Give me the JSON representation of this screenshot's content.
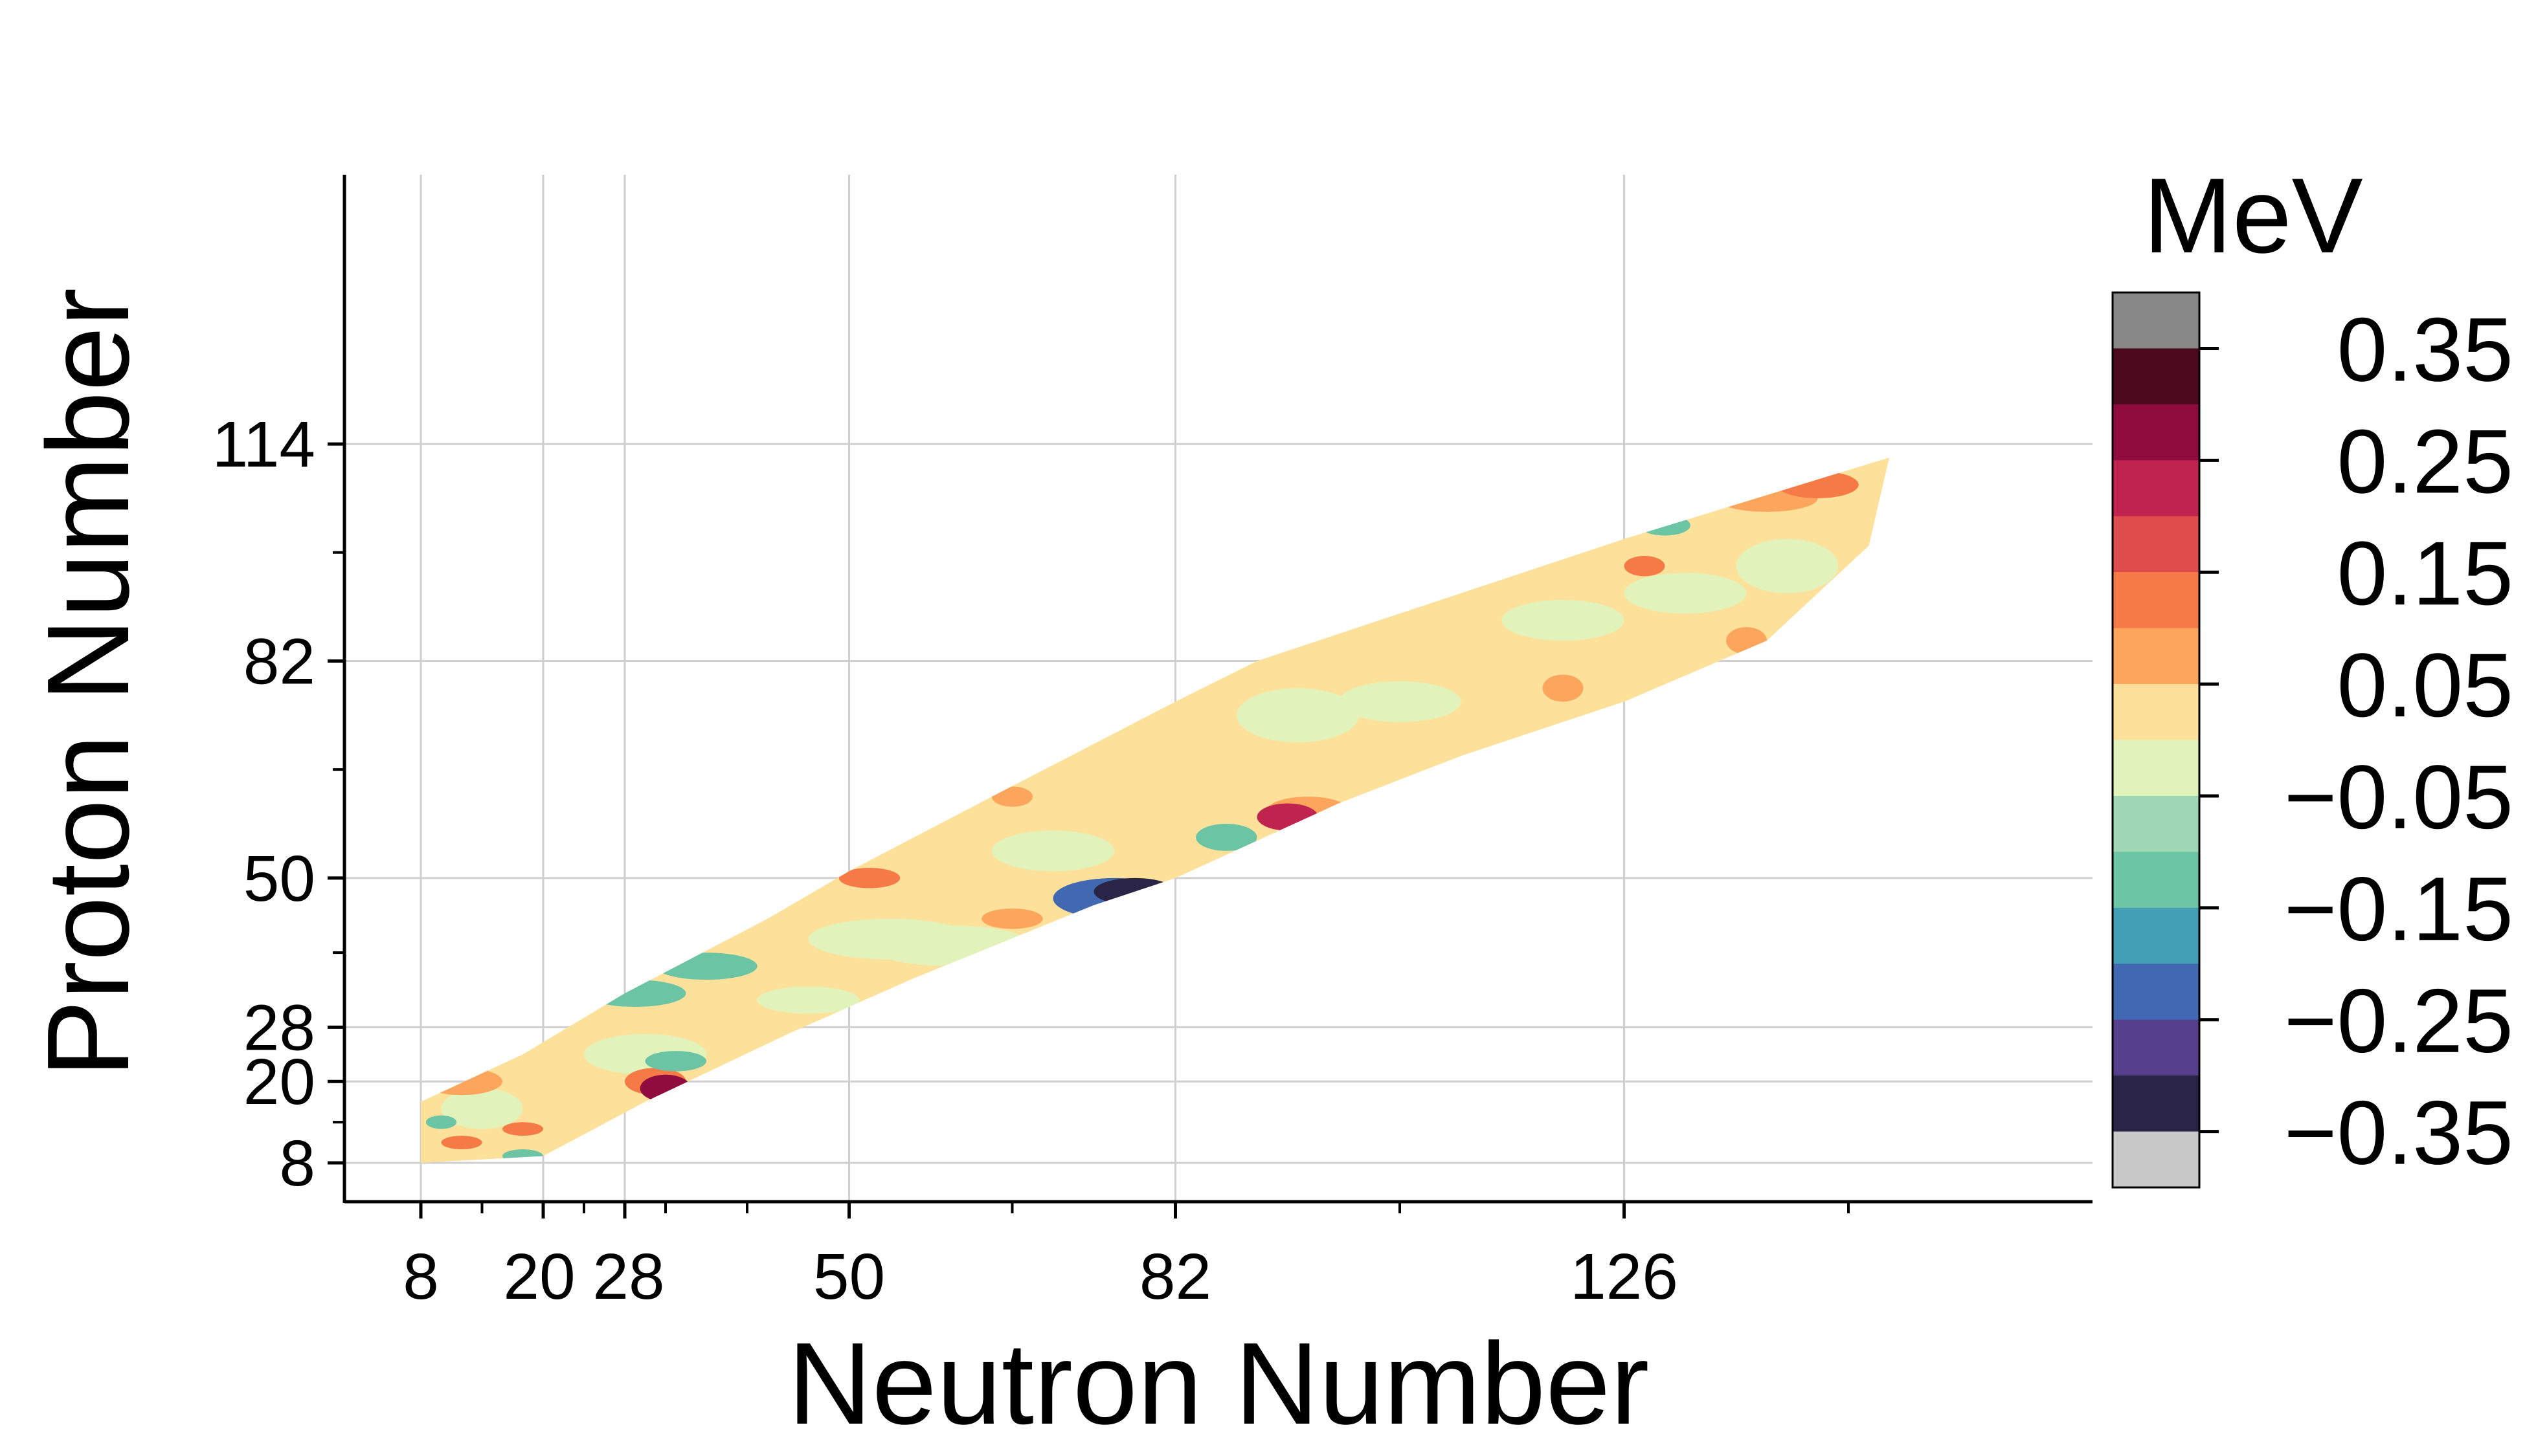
{
  "chart_data": {
    "type": "heatmap",
    "title": "",
    "xlabel": "Neutron Number",
    "ylabel": "Proton Number",
    "xlim": [
      0,
      196
    ],
    "ylim": [
      0,
      120
    ],
    "xticks_labeled": [
      8,
      20,
      28,
      50,
      82,
      126
    ],
    "xticks_minor": [
      14,
      24,
      32,
      40,
      66,
      104,
      148
    ],
    "yticks_labeled": [
      8,
      20,
      28,
      50,
      82,
      114
    ],
    "yticks_minor": [
      14,
      39,
      66,
      98
    ],
    "grid": true,
    "colorbar": {
      "title": "MeV",
      "tick_labels": [
        "0.35",
        "0.25",
        "0.15",
        "0.05",
        "−0.05",
        "−0.15",
        "−0.25",
        "−0.35"
      ],
      "tick_values": [
        0.35,
        0.25,
        0.15,
        0.05,
        -0.05,
        -0.15,
        -0.25,
        -0.35
      ],
      "levels": [
        {
          "range": [
            0.4,
            0.5
          ],
          "color": "#888888"
        },
        {
          "range": [
            0.3,
            0.4
          ],
          "color": "#4d0a1e"
        },
        {
          "range": [
            0.2,
            0.3
          ],
          "color": "#900c3f"
        },
        {
          "range": [
            0.2,
            0.25
          ],
          "color": "#c0234d"
        },
        {
          "range": [
            0.15,
            0.2
          ],
          "color": "#de4c4b"
        },
        {
          "range": [
            0.1,
            0.15
          ],
          "color": "#f57a46"
        },
        {
          "range": [
            0.05,
            0.1
          ],
          "color": "#fca55d"
        },
        {
          "range": [
            0.0,
            0.05
          ],
          "color": "#fde19b"
        },
        {
          "range": [
            -0.05,
            0.0
          ],
          "color": "#e1f3bb"
        },
        {
          "range": [
            -0.1,
            -0.05
          ],
          "color": "#9fd7b5"
        },
        {
          "range": [
            -0.15,
            -0.1
          ],
          "color": "#6bc4a4"
        },
        {
          "range": [
            -0.2,
            -0.15
          ],
          "color": "#429fb5"
        },
        {
          "range": [
            -0.25,
            -0.2
          ],
          "color": "#4069b1"
        },
        {
          "range": [
            -0.3,
            -0.25
          ],
          "color": "#563f8b"
        },
        {
          "range": [
            -0.4,
            -0.3
          ],
          "color": "#2a2546"
        },
        {
          "range": [
            -0.5,
            -0.4
          ],
          "color": "#c8c8c8"
        }
      ]
    },
    "domain_outline": [
      [
        8,
        17
      ],
      [
        18,
        24
      ],
      [
        28,
        33
      ],
      [
        42,
        44
      ],
      [
        50,
        51
      ],
      [
        64,
        62
      ],
      [
        82,
        76
      ],
      [
        90,
        82
      ],
      [
        104,
        89
      ],
      [
        126,
        100
      ],
      [
        152,
        112
      ],
      [
        150,
        99
      ],
      [
        140,
        85
      ],
      [
        126,
        76
      ],
      [
        110,
        68
      ],
      [
        98,
        61
      ],
      [
        82,
        50
      ],
      [
        74,
        46
      ],
      [
        56,
        35
      ],
      [
        44,
        27
      ],
      [
        30,
        17
      ],
      [
        20,
        9
      ],
      [
        8,
        8
      ]
    ],
    "background_level": 0.02,
    "patches": [
      {
        "n": 54,
        "z": 41,
        "value": -0.04,
        "rx": 8,
        "rz": 3
      },
      {
        "n": 70,
        "z": 54,
        "value": -0.04,
        "rx": 6,
        "rz": 3
      },
      {
        "n": 60,
        "z": 40,
        "value": -0.03,
        "rx": 8,
        "rz": 3
      },
      {
        "n": 94,
        "z": 74,
        "value": -0.04,
        "rx": 6,
        "rz": 4
      },
      {
        "n": 104,
        "z": 76,
        "value": -0.03,
        "rx": 6,
        "rz": 3
      },
      {
        "n": 120,
        "z": 88,
        "value": -0.04,
        "rx": 6,
        "rz": 3
      },
      {
        "n": 132,
        "z": 92,
        "value": -0.03,
        "rx": 6,
        "rz": 3
      },
      {
        "n": 142,
        "z": 96,
        "value": -0.04,
        "rx": 5,
        "rz": 4
      },
      {
        "n": 30,
        "z": 24,
        "value": -0.04,
        "rx": 6,
        "rz": 3
      },
      {
        "n": 14,
        "z": 16,
        "value": -0.04,
        "rx": 4,
        "rz": 3
      },
      {
        "n": 46,
        "z": 32,
        "value": -0.03,
        "rx": 5,
        "rz": 2
      },
      {
        "n": 29,
        "z": 33,
        "value": -0.13,
        "rx": 5,
        "rz": 2
      },
      {
        "n": 36,
        "z": 37,
        "value": -0.14,
        "rx": 5,
        "rz": 2
      },
      {
        "n": 33,
        "z": 23,
        "value": -0.12,
        "rx": 3,
        "rz": 1.5
      },
      {
        "n": 10,
        "z": 14,
        "value": -0.12,
        "rx": 1.5,
        "rz": 1
      },
      {
        "n": 18,
        "z": 9,
        "value": -0.12,
        "rx": 2,
        "rz": 1
      },
      {
        "n": 87,
        "z": 56,
        "value": -0.13,
        "rx": 3,
        "rz": 2
      },
      {
        "n": 130,
        "z": 102,
        "value": -0.11,
        "rx": 2.5,
        "rz": 1.5
      },
      {
        "n": 78,
        "z": 48,
        "value": -0.34,
        "rx": 4,
        "rz": 2
      },
      {
        "n": 76,
        "z": 47,
        "value": -0.22,
        "rx": 6,
        "rz": 3
      },
      {
        "n": 32,
        "z": 19,
        "value": 0.28,
        "rx": 2.5,
        "rz": 2
      },
      {
        "n": 31,
        "z": 20,
        "value": 0.12,
        "rx": 3,
        "rz": 2
      },
      {
        "n": 93,
        "z": 59,
        "value": 0.2,
        "rx": 3,
        "rz": 2
      },
      {
        "n": 95,
        "z": 60,
        "value": 0.09,
        "rx": 4,
        "rz": 2
      },
      {
        "n": 145,
        "z": 108,
        "value": 0.14,
        "rx": 4,
        "rz": 2
      },
      {
        "n": 140,
        "z": 106,
        "value": 0.08,
        "rx": 5,
        "rz": 2
      },
      {
        "n": 12,
        "z": 20,
        "value": 0.09,
        "rx": 4,
        "rz": 2
      },
      {
        "n": 12,
        "z": 11,
        "value": 0.11,
        "rx": 2,
        "rz": 1
      },
      {
        "n": 18,
        "z": 13,
        "value": 0.1,
        "rx": 2,
        "rz": 1
      },
      {
        "n": 52,
        "z": 50,
        "value": 0.1,
        "rx": 3,
        "rz": 1.5
      },
      {
        "n": 66,
        "z": 44,
        "value": 0.09,
        "rx": 3,
        "rz": 1.5
      },
      {
        "n": 128,
        "z": 96,
        "value": 0.1,
        "rx": 2,
        "rz": 1.5
      },
      {
        "n": 138,
        "z": 85,
        "value": 0.08,
        "rx": 2,
        "rz": 2
      },
      {
        "n": 120,
        "z": 78,
        "value": 0.09,
        "rx": 2,
        "rz": 2
      },
      {
        "n": 66,
        "z": 62,
        "value": 0.08,
        "rx": 2,
        "rz": 1.5
      }
    ]
  }
}
